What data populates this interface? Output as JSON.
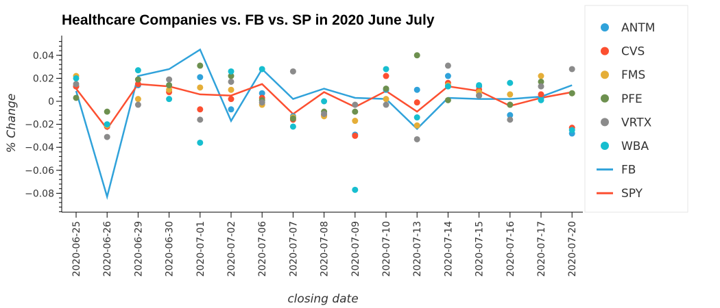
{
  "chart_data": {
    "type": "scatter",
    "title": "Healthcare Companies vs. FB vs. SP in 2020 June July",
    "xlabel": "closing date",
    "ylabel": "% Change",
    "categories": [
      "2020-06-25",
      "2020-06-26",
      "2020-06-29",
      "2020-06-30",
      "2020-07-01",
      "2020-07-02",
      "2020-07-06",
      "2020-07-07",
      "2020-07-08",
      "2020-07-09",
      "2020-07-10",
      "2020-07-13",
      "2020-07-14",
      "2020-07-15",
      "2020-07-16",
      "2020-07-17",
      "2020-07-20"
    ],
    "ylim": [
      -0.097,
      0.057
    ],
    "yticks": [
      0.04,
      0.02,
      0,
      -0.02,
      -0.04,
      -0.06,
      -0.08
    ],
    "ytick_labels": [
      "0.04",
      "0.02",
      "0",
      "−0.02",
      "−0.04",
      "−0.06",
      "−0.08"
    ],
    "grid": false,
    "legend": "right",
    "series": [
      {
        "name": "ANTM",
        "kind": "scatter",
        "color": "#30a2da",
        "values": [
          0.013,
          -0.022,
          0.014,
          0.014,
          0.021,
          -0.007,
          0.007,
          -0.013,
          -0.011,
          -0.029,
          0.01,
          0.01,
          0.022,
          0.013,
          -0.012,
          0.003,
          -0.028
        ]
      },
      {
        "name": "CVS",
        "kind": "scatter",
        "color": "#fc4f30",
        "values": [
          0.013,
          -0.022,
          0.015,
          0.008,
          -0.007,
          0.002,
          0.003,
          -0.016,
          -0.012,
          -0.03,
          0.022,
          -0.001,
          0.016,
          0.01,
          -0.003,
          0.006,
          -0.023
        ]
      },
      {
        "name": "FMS",
        "kind": "scatter",
        "color": "#e5ae38",
        "values": [
          0.022,
          -0.021,
          0.002,
          0.01,
          0.012,
          0.01,
          -0.003,
          -0.014,
          -0.013,
          -0.017,
          0.002,
          -0.021,
          0.014,
          0.008,
          0.006,
          0.022,
          0.007
        ]
      },
      {
        "name": "PFE",
        "kind": "scatter",
        "color": "#6d904f",
        "values": [
          0.003,
          -0.009,
          0.019,
          0.014,
          0.031,
          0.022,
          0.001,
          -0.015,
          -0.009,
          -0.009,
          0.011,
          0.04,
          0.001,
          0.005,
          -0.003,
          0.017,
          0.007
        ]
      },
      {
        "name": "VRTX",
        "kind": "scatter",
        "color": "#8b8b8b",
        "values": [
          0.015,
          -0.031,
          -0.003,
          0.019,
          -0.016,
          0.017,
          -0.001,
          0.026,
          -0.011,
          -0.003,
          -0.003,
          -0.033,
          0.031,
          0.005,
          -0.016,
          0.013,
          0.028
        ]
      },
      {
        "name": "WBA",
        "kind": "scatter",
        "color": "#17becf",
        "values": [
          0.02,
          -0.02,
          0.027,
          0.002,
          -0.036,
          0.026,
          0.028,
          -0.022,
          0.0,
          -0.077,
          0.028,
          -0.014,
          0.013,
          0.014,
          0.016,
          0.001,
          -0.025
        ]
      },
      {
        "name": "FB",
        "kind": "line",
        "color": "#30a2da",
        "values": [
          0.009,
          -0.083,
          0.022,
          0.028,
          0.045,
          -0.017,
          0.028,
          0.002,
          0.011,
          0.003,
          0.002,
          -0.024,
          0.003,
          0.002,
          0.002,
          0.004,
          0.014
        ]
      },
      {
        "name": "SPY",
        "kind": "line",
        "color": "#fc4f30",
        "values": [
          0.011,
          -0.024,
          0.015,
          0.013,
          0.006,
          0.005,
          0.015,
          -0.011,
          0.008,
          -0.005,
          0.009,
          -0.009,
          0.013,
          0.009,
          -0.004,
          0.003,
          0.008
        ]
      }
    ]
  }
}
